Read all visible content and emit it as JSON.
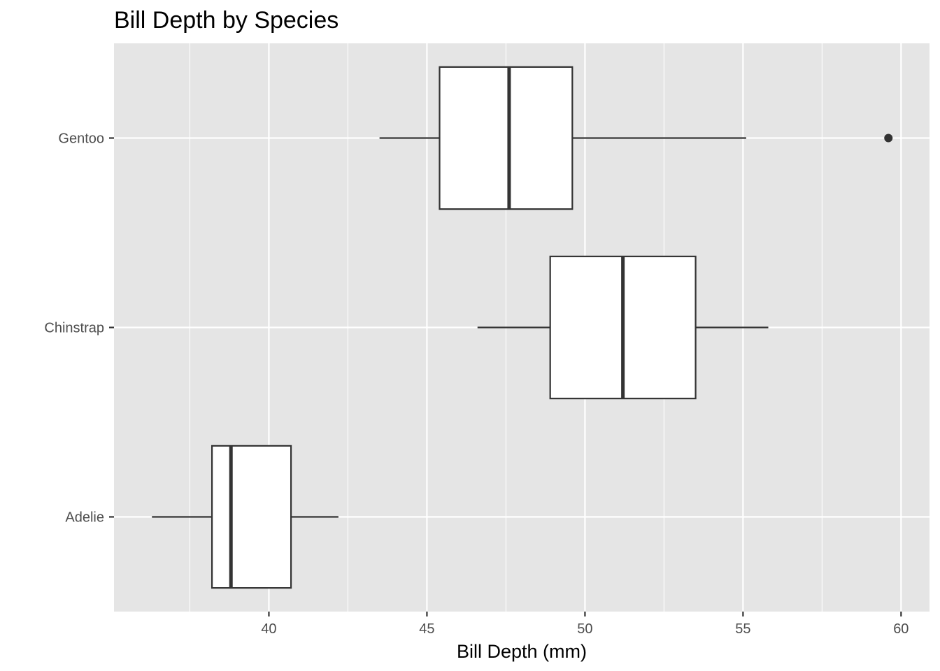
{
  "chart_data": {
    "type": "boxplot",
    "orientation": "horizontal",
    "title": "Bill Depth by Species",
    "xlabel": "Bill Depth (mm)",
    "ylabel": "",
    "xlim": [
      35.1,
      60.9
    ],
    "xticks": [
      40,
      45,
      50,
      55,
      60
    ],
    "xtick_labels": [
      "40",
      "45",
      "50",
      "55",
      "60"
    ],
    "categories": [
      "Adelie",
      "Chinstrap",
      "Gentoo"
    ],
    "boxes": [
      {
        "category": "Adelie",
        "whisker_low": 36.3,
        "q1": 38.2,
        "median": 38.8,
        "q3": 40.7,
        "whisker_high": 42.2,
        "outliers": []
      },
      {
        "category": "Chinstrap",
        "whisker_low": 46.6,
        "q1": 48.9,
        "median": 51.2,
        "q3": 53.5,
        "whisker_high": 55.8,
        "outliers": []
      },
      {
        "category": "Gentoo",
        "whisker_low": 43.5,
        "q1": 45.4,
        "median": 47.6,
        "q3": 49.6,
        "whisker_high": 55.1,
        "outliers": [
          59.6
        ]
      }
    ],
    "grid": true,
    "legend": "none",
    "colors": {
      "panel_background": "#e5e5e5",
      "grid": "#ffffff",
      "box_fill": "#ffffff",
      "box_stroke": "#333333",
      "tick_label": "#4d4d4d"
    }
  }
}
